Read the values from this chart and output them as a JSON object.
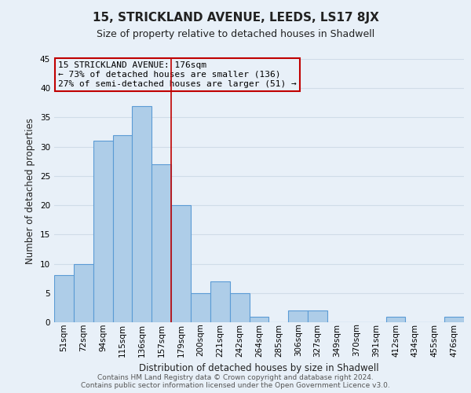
{
  "title": "15, STRICKLAND AVENUE, LEEDS, LS17 8JX",
  "subtitle": "Size of property relative to detached houses in Shadwell",
  "xlabel": "Distribution of detached houses by size in Shadwell",
  "ylabel": "Number of detached properties",
  "bar_values": [
    8,
    10,
    31,
    32,
    37,
    27,
    20,
    5,
    7,
    5,
    1,
    0,
    2,
    2,
    0,
    0,
    0,
    1,
    0,
    0,
    1
  ],
  "bin_labels": [
    "51sqm",
    "72sqm",
    "94sqm",
    "115sqm",
    "136sqm",
    "157sqm",
    "179sqm",
    "200sqm",
    "221sqm",
    "242sqm",
    "264sqm",
    "285sqm",
    "306sqm",
    "327sqm",
    "349sqm",
    "370sqm",
    "391sqm",
    "412sqm",
    "434sqm",
    "455sqm",
    "476sqm"
  ],
  "bar_color": "#aecde8",
  "bar_edge_color": "#5b9bd5",
  "grid_color": "#d0dce8",
  "background_color": "#e8f0f8",
  "red_line_x": 5.5,
  "annotation_line1": "15 STRICKLAND AVENUE: 176sqm",
  "annotation_line2": "← 73% of detached houses are smaller (136)",
  "annotation_line3": "27% of semi-detached houses are larger (51) →",
  "annotation_box_edge": "#c00000",
  "ylim": [
    0,
    45
  ],
  "yticks": [
    0,
    5,
    10,
    15,
    20,
    25,
    30,
    35,
    40,
    45
  ],
  "footer_line1": "Contains HM Land Registry data © Crown copyright and database right 2024.",
  "footer_line2": "Contains public sector information licensed under the Open Government Licence v3.0.",
  "title_fontsize": 11,
  "subtitle_fontsize": 9,
  "axis_label_fontsize": 8.5,
  "tick_fontsize": 7.5,
  "annotation_fontsize": 8,
  "footer_fontsize": 6.5
}
